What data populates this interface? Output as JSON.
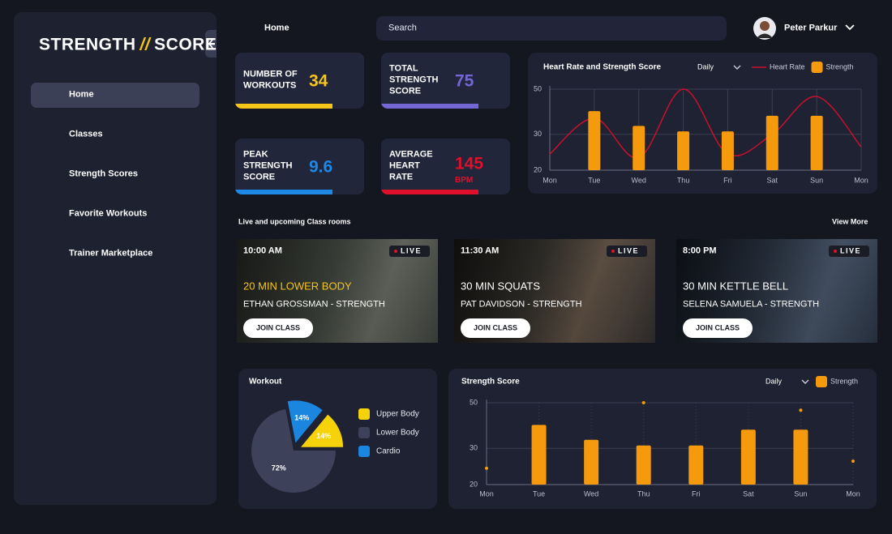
{
  "sidebar": {
    "brand": [
      "STRENGTH",
      "//",
      "SCORE"
    ],
    "nav": [
      "Home",
      "Classes",
      "Strength Scores",
      "Favorite Workouts",
      "Trainer Marketplace"
    ]
  },
  "header": {
    "page": "Home",
    "search": "Search",
    "user": "Peter Parkur"
  },
  "stats": [
    {
      "label": [
        "NUMBER OF",
        "WORKOUTS"
      ],
      "value": 34,
      "color": "#f5c518"
    },
    {
      "label": [
        "TOTAL",
        "STRENGTH",
        "SCORE"
      ],
      "value": 75,
      "color": "#7466d3"
    },
    {
      "label": [
        "PEAK",
        "STRENGTH",
        "SCORE"
      ],
      "value": 9.6,
      "color": "#1e88e5"
    },
    {
      "label": [
        "AVERAGE",
        "HEART",
        "RATE"
      ],
      "value": 145,
      "unit": "BPM",
      "color": "#e0102a"
    }
  ],
  "classes": {
    "title": "Live and upcoming Class rooms",
    "more": "View More",
    "items": [
      {
        "time": "10:00 AM",
        "status": "LIVE",
        "name": "20 MIN LOWER BODY",
        "trainer": "ETHAN GROSSMAN - STRENGTH",
        "action": "JOIN CLASS"
      },
      {
        "time": "11:30 AM",
        "status": "LIVE",
        "name": "30 MIN SQUATS",
        "trainer": "PAT DAVIDSON - STRENGTH",
        "action": "JOIN CLASS"
      },
      {
        "time": "8:00 PM",
        "status": "LIVE",
        "name": "30 MIN KETTLE BELL",
        "trainer": "SELENA SAMUELA - STRENGTH",
        "action": "JOIN CLASS"
      }
    ]
  },
  "chart_data": [
    {
      "type": "combo",
      "title": "Heart Rate and Strength Score",
      "period": "Daily",
      "categories": [
        "Mon",
        "Tue",
        "Wed",
        "Thu",
        "Fri",
        "Sat",
        "Sun",
        "Mon"
      ],
      "series": [
        {
          "name": "Heart Rate",
          "type": "line",
          "color": "#c8102e",
          "values": [
            24,
            36,
            23,
            50,
            24,
            30,
            46,
            26
          ]
        },
        {
          "name": "Strength",
          "type": "bar",
          "color": "#f59a0c",
          "values": [
            null,
            39,
            33,
            31,
            31,
            37,
            37,
            null
          ]
        }
      ],
      "ylim": [
        20,
        50
      ],
      "yticks": [
        20,
        30,
        50
      ],
      "log_scale": true,
      "grid": true
    },
    {
      "type": "combo",
      "title": "Strength Score",
      "period": "Daily",
      "categories": [
        "Mon",
        "Tue",
        "Wed",
        "Thu",
        "Fri",
        "Sat",
        "Sun",
        "Mon"
      ],
      "series": [
        {
          "name": "Strength",
          "type": "bar",
          "color": "#f59a0c",
          "values": [
            null,
            39,
            33,
            31,
            31,
            37,
            37,
            null
          ]
        },
        {
          "type": "scatter",
          "color": "#f59a0c",
          "values": [
            24,
            null,
            null,
            50,
            null,
            null,
            46,
            26
          ]
        }
      ],
      "ylim": [
        20,
        50
      ],
      "yticks": [
        20,
        30,
        50
      ],
      "log_scale": true,
      "grid": true
    },
    {
      "type": "pie",
      "title": "Workout",
      "categories": [
        "Upper Body",
        "Lower Body",
        "Cardio"
      ],
      "values": [
        14,
        72,
        14
      ],
      "value_labels": [
        "14%",
        "72%",
        "14%"
      ],
      "colors": [
        "#f5d20a",
        "#3d4159",
        "#1a86e0"
      ]
    }
  ]
}
